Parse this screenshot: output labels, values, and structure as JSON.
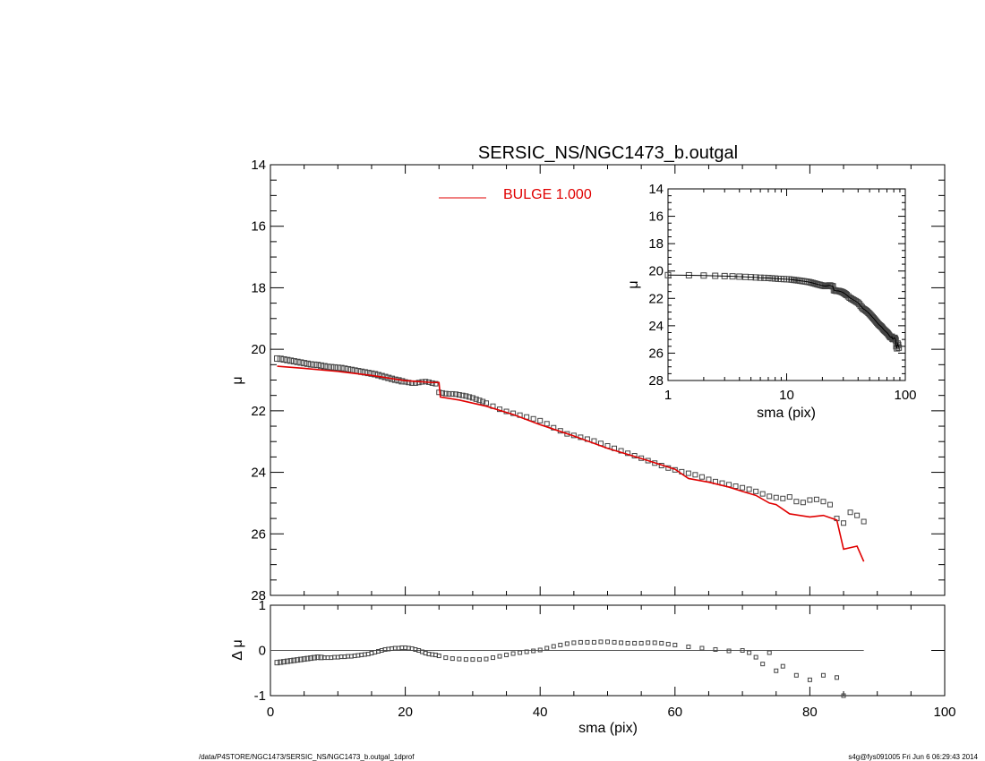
{
  "chart_data": [
    {
      "type": "scatter",
      "panel": "main",
      "title": "SERSIC_NS/NGC1473_b.outgal",
      "xlabel": "",
      "ylabel": "μ",
      "xlim": [
        0,
        100
      ],
      "ylim": [
        28,
        14
      ],
      "y_reversed": true,
      "x_ticks": [
        0,
        20,
        40,
        60,
        80,
        100
      ],
      "y_ticks": [
        14,
        16,
        18,
        20,
        22,
        24,
        26,
        28
      ],
      "legend": {
        "position": "top-center",
        "entries": [
          {
            "name": "BULGE  1.000",
            "color": "#e00000"
          }
        ]
      },
      "series": [
        {
          "kind": "points",
          "name": "",
          "x": [
            1,
            1.5,
            2,
            2.5,
            3,
            3.5,
            4,
            4.5,
            5,
            5.5,
            6,
            6.5,
            7,
            7.5,
            8,
            8.5,
            9,
            9.5,
            10,
            10.5,
            11,
            11.5,
            12,
            12.5,
            13,
            13.5,
            14,
            14.5,
            15,
            15.5,
            16,
            16.5,
            17,
            17.5,
            18,
            18.5,
            19,
            19.5,
            20,
            20.5,
            21,
            21.5,
            22,
            22.5,
            23,
            23.5,
            24,
            24.5,
            25,
            25.5,
            26,
            26.5,
            27,
            27.5,
            28,
            28.5,
            29,
            29.5,
            30,
            30.5,
            31,
            31.5,
            32,
            33,
            34,
            35,
            36,
            37,
            38,
            39,
            40,
            41,
            42,
            43,
            44,
            45,
            46,
            47,
            48,
            49,
            50,
            51,
            52,
            53,
            54,
            55,
            56,
            57,
            58,
            59,
            60,
            61,
            62,
            63,
            64,
            65,
            66,
            67,
            68,
            69,
            70,
            71,
            72,
            73,
            74,
            75,
            76,
            77,
            78,
            79,
            80,
            81,
            82,
            83,
            84,
            85,
            86,
            87,
            88
          ],
          "y": [
            20.3,
            20.31,
            20.33,
            20.35,
            20.37,
            20.39,
            20.41,
            20.43,
            20.45,
            20.47,
            20.49,
            20.5,
            20.51,
            20.53,
            20.55,
            20.57,
            20.58,
            20.59,
            20.6,
            20.61,
            20.63,
            20.65,
            20.67,
            20.69,
            20.71,
            20.73,
            20.75,
            20.77,
            20.79,
            20.81,
            20.84,
            20.87,
            20.9,
            20.93,
            20.96,
            20.99,
            21.01,
            21.04,
            21.06,
            21.08,
            21.1,
            21.1,
            21.08,
            21.06,
            21.05,
            21.07,
            21.1,
            21.12,
            21.4,
            21.42,
            21.44,
            21.45,
            21.45,
            21.46,
            21.48,
            21.5,
            21.52,
            21.55,
            21.58,
            21.62,
            21.66,
            21.7,
            21.75,
            21.85,
            21.95,
            22.02,
            22.08,
            22.14,
            22.2,
            22.26,
            22.32,
            22.42,
            22.55,
            22.65,
            22.75,
            22.8,
            22.86,
            22.92,
            22.98,
            23.06,
            23.14,
            23.22,
            23.3,
            23.38,
            23.46,
            23.54,
            23.62,
            23.7,
            23.78,
            23.86,
            23.92,
            23.98,
            24.03,
            24.08,
            24.15,
            24.23,
            24.3,
            24.35,
            24.4,
            24.45,
            24.5,
            24.55,
            24.62,
            24.7,
            24.78,
            24.82,
            24.85,
            24.8,
            24.95,
            24.98,
            24.9,
            24.88,
            24.95,
            25.05,
            25.5,
            25.65,
            25.3,
            25.4,
            25.6
          ]
        },
        {
          "kind": "line",
          "name": "BULGE  1.000",
          "color": "#e00000",
          "x": [
            1,
            5,
            10,
            15,
            20,
            22,
            24,
            25,
            25.2,
            28,
            32,
            36,
            40,
            45,
            50,
            55,
            60,
            62,
            65,
            68,
            70,
            72,
            74,
            75,
            77,
            80,
            82,
            84,
            85,
            87,
            88
          ],
          "y": [
            20.55,
            20.62,
            20.72,
            20.85,
            21.02,
            21.05,
            21.08,
            21.08,
            21.55,
            21.65,
            21.85,
            22.12,
            22.45,
            22.82,
            23.22,
            23.55,
            23.9,
            24.2,
            24.32,
            24.48,
            24.62,
            24.75,
            25.0,
            25.05,
            25.35,
            25.45,
            25.4,
            25.55,
            26.5,
            26.4,
            26.9
          ]
        }
      ]
    },
    {
      "type": "scatter",
      "panel": "residual",
      "xlabel": "sma (pix)",
      "ylabel": "Δ μ",
      "xlim": [
        0,
        100
      ],
      "ylim": [
        -1,
        1
      ],
      "x_ticks": [
        0,
        20,
        40,
        60,
        80,
        100
      ],
      "y_ticks": [
        -1,
        0,
        1
      ],
      "reference_line": {
        "y": 0,
        "x_range": [
          0,
          88
        ]
      },
      "series": [
        {
          "kind": "points",
          "name": "",
          "x": [
            1,
            1.5,
            2,
            2.5,
            3,
            3.5,
            4,
            4.5,
            5,
            5.5,
            6,
            6.5,
            7,
            7.5,
            8,
            8.5,
            9,
            9.5,
            10,
            10.5,
            11,
            11.5,
            12,
            12.5,
            13,
            13.5,
            14,
            14.5,
            15,
            15.5,
            16,
            16.5,
            17,
            17.5,
            18,
            18.5,
            19,
            19.5,
            20,
            20.5,
            21,
            21.5,
            22,
            22.5,
            23,
            23.5,
            24,
            24.5,
            25,
            26,
            27,
            28,
            29,
            30,
            31,
            32,
            33,
            34,
            35,
            36,
            37,
            38,
            39,
            40,
            41,
            42,
            43,
            44,
            45,
            46,
            47,
            48,
            49,
            50,
            51,
            52,
            53,
            54,
            55,
            56,
            57,
            58,
            59,
            60,
            62,
            64,
            66,
            68,
            70,
            71,
            72,
            73,
            74,
            75,
            76,
            78,
            80,
            82,
            84,
            85
          ],
          "y": [
            -0.27,
            -0.26,
            -0.25,
            -0.24,
            -0.23,
            -0.22,
            -0.21,
            -0.2,
            -0.19,
            -0.18,
            -0.17,
            -0.16,
            -0.15,
            -0.155,
            -0.16,
            -0.16,
            -0.16,
            -0.15,
            -0.15,
            -0.14,
            -0.14,
            -0.13,
            -0.13,
            -0.12,
            -0.11,
            -0.1,
            -0.09,
            -0.08,
            -0.06,
            -0.04,
            -0.02,
            0.0,
            0.02,
            0.03,
            0.04,
            0.05,
            0.05,
            0.06,
            0.06,
            0.05,
            0.04,
            0.02,
            0.0,
            -0.03,
            -0.06,
            -0.08,
            -0.09,
            -0.1,
            -0.12,
            -0.16,
            -0.18,
            -0.19,
            -0.2,
            -0.2,
            -0.2,
            -0.19,
            -0.16,
            -0.13,
            -0.1,
            -0.07,
            -0.05,
            -0.03,
            -0.01,
            0.01,
            0.05,
            0.09,
            0.12,
            0.15,
            0.17,
            0.18,
            0.18,
            0.18,
            0.19,
            0.19,
            0.18,
            0.17,
            0.16,
            0.16,
            0.16,
            0.17,
            0.17,
            0.16,
            0.14,
            0.12,
            0.08,
            0.05,
            0.02,
            -0.01,
            0.0,
            -0.05,
            -0.15,
            -0.3,
            -0.05,
            -0.45,
            -0.35,
            -0.55,
            -0.65,
            -0.55,
            -0.6,
            -1.0
          ]
        }
      ]
    },
    {
      "type": "scatter",
      "panel": "inset",
      "xlabel": "sma (pix)",
      "ylabel": "μ",
      "x_scale": "log",
      "xlim": [
        1,
        100
      ],
      "ylim": [
        28,
        14
      ],
      "y_reversed": true,
      "x_ticks": [
        1,
        10,
        100
      ],
      "y_ticks": [
        14,
        16,
        18,
        20,
        22,
        24,
        26,
        28
      ]
    }
  ],
  "footer": {
    "left": "/data/P4STORE/NGC1473/SERSIC_NS/NGC1473_b.outgal_1dprof",
    "right": "s4g@fys091005  Fri Jun  6 06:29:43 2014"
  }
}
